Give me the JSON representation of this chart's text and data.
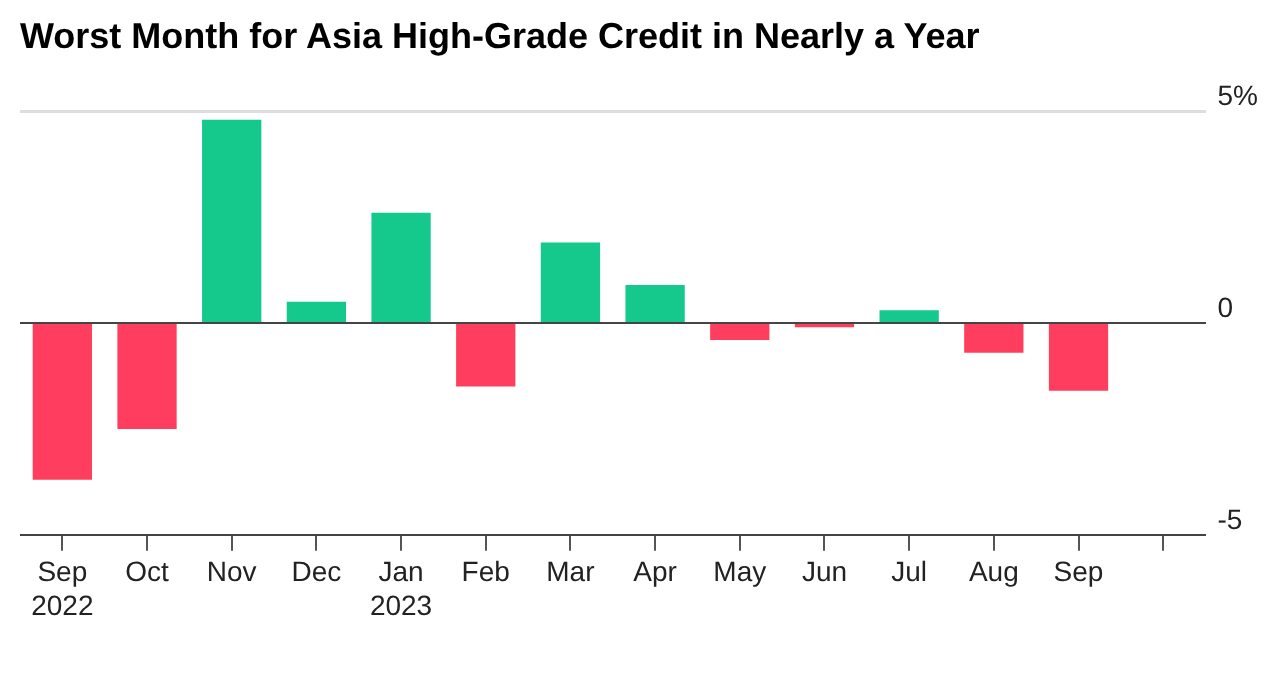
{
  "chart_data": {
    "type": "bar",
    "title": "Worst Month for Asia High-Grade Credit in Nearly a Year",
    "categories": [
      "Sep 2022",
      "Oct",
      "Nov",
      "Dec",
      "Jan 2023",
      "Feb",
      "Mar",
      "Apr",
      "May",
      "Jun",
      "Jul",
      "Aug",
      "Sep",
      null
    ],
    "values": [
      -3.7,
      -2.5,
      4.8,
      0.5,
      2.6,
      -1.5,
      1.9,
      0.9,
      -0.4,
      -0.1,
      0.3,
      -0.7,
      -1.6,
      null
    ],
    "colors": [
      "#ff3d5f",
      "#ff3d5f",
      "#14c98b",
      "#14c98b",
      "#14c98b",
      "#ff3d5f",
      "#14c98b",
      "#14c98b",
      "#ff3d5f",
      "#ff3d5f",
      "#14c98b",
      "#ff3d5f",
      "#ff3d5f",
      "#ff3d5f"
    ],
    "ylim": [
      -5,
      5
    ],
    "yticks": [
      {
        "value": 5,
        "label": "5%"
      },
      0,
      -5
    ],
    "grid": "y",
    "legend": false
  }
}
